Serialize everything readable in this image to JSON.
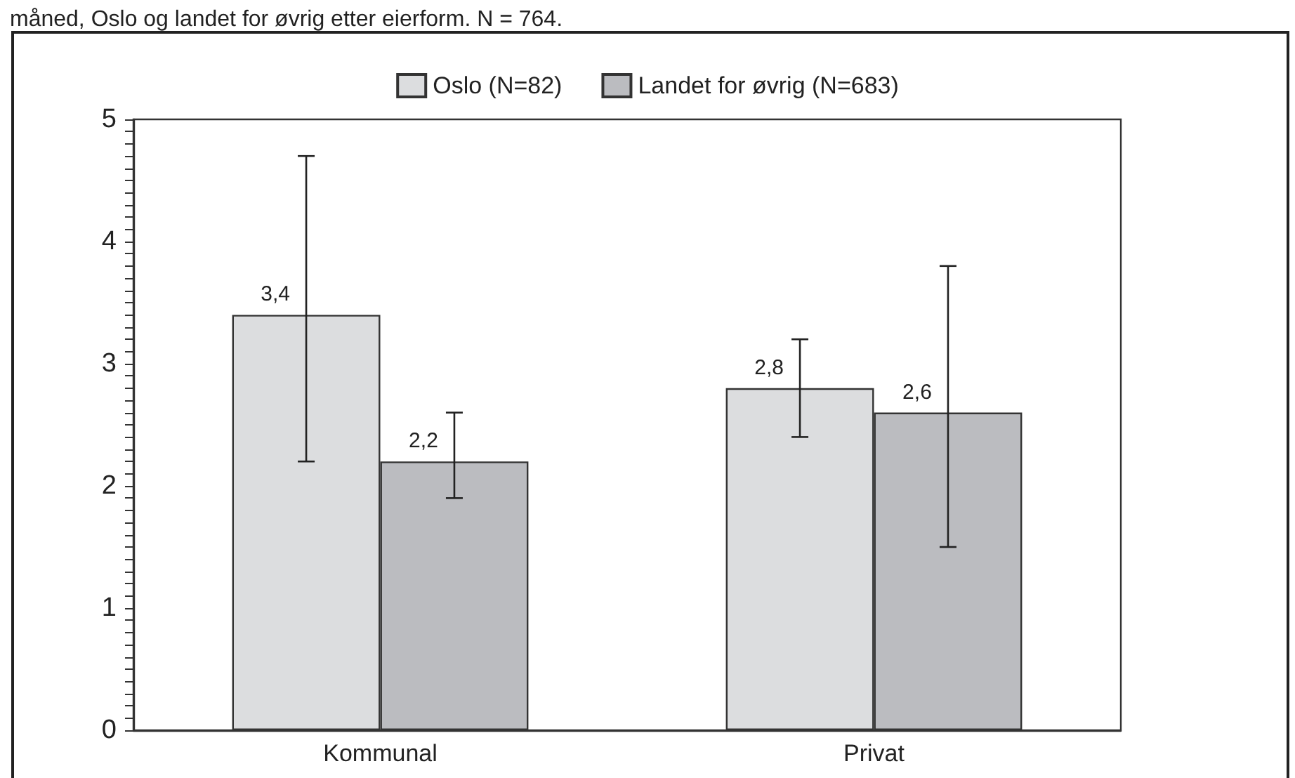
{
  "chart_data": {
    "type": "bar",
    "title": "måned, Oslo og landet for øvrig etter eierform. N = 764.",
    "categories": [
      "Kommunal",
      "Privat"
    ],
    "series": [
      {
        "name": "Oslo (N=82)",
        "color": "#dcdddf",
        "values": [
          3.4,
          2.8
        ],
        "value_labels": [
          "3,4",
          "2,8"
        ],
        "errors": [
          [
            2.2,
            4.7
          ],
          [
            2.4,
            3.2
          ]
        ]
      },
      {
        "name": "Landet for øvrig (N=683)",
        "color": "#bbbcc0",
        "values": [
          2.2,
          2.6
        ],
        "value_labels": [
          "2,2",
          "2,6"
        ],
        "errors": [
          [
            1.9,
            2.6
          ],
          [
            1.5,
            3.8
          ]
        ]
      }
    ],
    "ylim": [
      0,
      5
    ],
    "yticks": [
      0,
      {
        "value": 0.1,
        "label": null
      },
      {
        "value": 0.2,
        "label": null
      },
      {
        "value": 0.3,
        "label": null
      },
      {
        "value": 0.4,
        "label": null
      },
      {
        "value": 0.5,
        "label": null
      },
      {
        "value": 0.6,
        "label": null
      },
      {
        "value": 0.7,
        "label": null
      },
      {
        "value": 0.8,
        "label": null
      },
      {
        "value": 0.9,
        "label": null
      },
      1,
      {
        "value": 1.1,
        "label": null
      },
      {
        "value": 1.2,
        "label": null
      },
      {
        "value": 1.3,
        "label": null
      },
      {
        "value": 1.4,
        "label": null
      },
      {
        "value": 1.5,
        "label": null
      },
      {
        "value": 1.6,
        "label": null
      },
      {
        "value": 1.7,
        "label": null
      },
      {
        "value": 1.8,
        "label": null
      },
      {
        "value": 1.9,
        "label": null
      },
      2,
      {
        "value": 2.1,
        "label": null
      },
      {
        "value": 2.2,
        "label": null
      },
      {
        "value": 2.3,
        "label": null
      },
      {
        "value": 2.4,
        "label": null
      },
      {
        "value": 2.5,
        "label": null
      },
      {
        "value": 2.6,
        "label": null
      },
      {
        "value": 2.7,
        "label": null
      },
      {
        "value": 2.8,
        "label": null
      },
      {
        "value": 2.9,
        "label": null
      },
      3,
      {
        "value": 3.1,
        "label": null
      },
      {
        "value": 3.2,
        "label": null
      },
      {
        "value": 3.3,
        "label": null
      },
      {
        "value": 3.4,
        "label": null
      },
      {
        "value": 3.5,
        "label": null
      },
      {
        "value": 3.6,
        "label": null
      },
      {
        "value": 3.7,
        "label": null
      },
      {
        "value": 3.8,
        "label": null
      },
      {
        "value": 3.9,
        "label": null
      },
      4,
      {
        "value": 4.1,
        "label": null
      },
      {
        "value": 4.2,
        "label": null
      },
      {
        "value": 4.3,
        "label": null
      },
      {
        "value": 4.4,
        "label": null
      },
      {
        "value": 4.5,
        "label": null
      },
      {
        "value": 4.6,
        "label": null
      },
      {
        "value": 4.7,
        "label": null
      },
      {
        "value": 4.8,
        "label": null
      },
      {
        "value": 4.9,
        "label": null
      },
      5
    ],
    "grid": false,
    "legend": "top"
  }
}
